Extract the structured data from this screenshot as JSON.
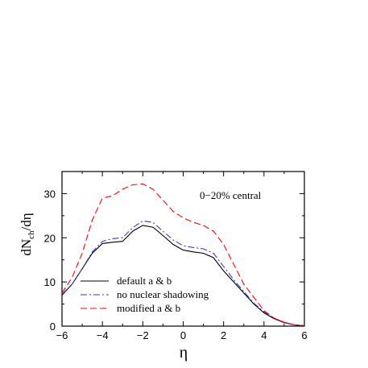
{
  "chart_data": {
    "type": "line",
    "xlabel": "η",
    "ylabel_main": "dN",
    "ylabel_sub": "ch",
    "ylabel_tail": "/dη",
    "annotation": "0−20% central",
    "xlim": [
      -6,
      6
    ],
    "ylim": [
      0,
      35
    ],
    "xticks": [
      -6,
      -4,
      -2,
      0,
      2,
      4,
      6
    ],
    "yticks": [
      0,
      10,
      20,
      30
    ],
    "grid": false,
    "legend_position": "bottom-left",
    "series": [
      {
        "name": "default a & b",
        "color": "#000000",
        "dash": "solid",
        "x": [
          -6,
          -5.5,
          -5,
          -4.5,
          -4,
          -3.5,
          -3,
          -2.5,
          -2,
          -1.5,
          -1,
          -0.5,
          0,
          0.5,
          1,
          1.5,
          2,
          2.5,
          3,
          3.5,
          4,
          4.5,
          5,
          5.5,
          6
        ],
        "y": [
          7,
          9.5,
          13,
          16.5,
          18.7,
          19,
          19.2,
          21.5,
          22.8,
          22.4,
          20.5,
          18.5,
          17.2,
          16.8,
          16.5,
          15.5,
          12.5,
          10,
          7.5,
          5,
          3,
          1.7,
          0.8,
          0.3,
          0.1
        ]
      },
      {
        "name": "no nuclear shadowing",
        "color": "#3a3acc",
        "dash": "dashdot",
        "x": [
          -6,
          -5.5,
          -5,
          -4.5,
          -4,
          -3.5,
          -3,
          -2.5,
          -2,
          -1.5,
          -1,
          -0.5,
          0,
          0.5,
          1,
          1.5,
          2,
          2.5,
          3,
          3.5,
          4,
          4.5,
          5,
          5.5,
          6
        ],
        "y": [
          7.2,
          9.5,
          13,
          16.8,
          19.2,
          19.8,
          20,
          22.3,
          23.8,
          23.5,
          21.5,
          19.5,
          18.2,
          17.8,
          17.5,
          16.5,
          13.5,
          10.5,
          7.8,
          5.2,
          3.2,
          1.8,
          0.9,
          0.3,
          0.1
        ]
      },
      {
        "name": "modified a & b",
        "color": "#ff0000",
        "dash": "dashed",
        "x": [
          -6,
          -5.5,
          -5,
          -4.5,
          -4,
          -3.5,
          -3,
          -2.5,
          -2,
          -1.5,
          -1,
          -0.5,
          0,
          0.5,
          1,
          1.5,
          2,
          2.5,
          3,
          3.5,
          4,
          4.5,
          5,
          5.5,
          6
        ],
        "y": [
          7.5,
          11,
          16.5,
          24,
          29,
          29.5,
          31,
          32,
          32.2,
          31,
          28.5,
          26,
          24.5,
          23.5,
          22.8,
          21.5,
          18.5,
          14,
          9.5,
          6.5,
          3.5,
          1.8,
          0.9,
          0.3,
          0.1
        ]
      }
    ]
  }
}
